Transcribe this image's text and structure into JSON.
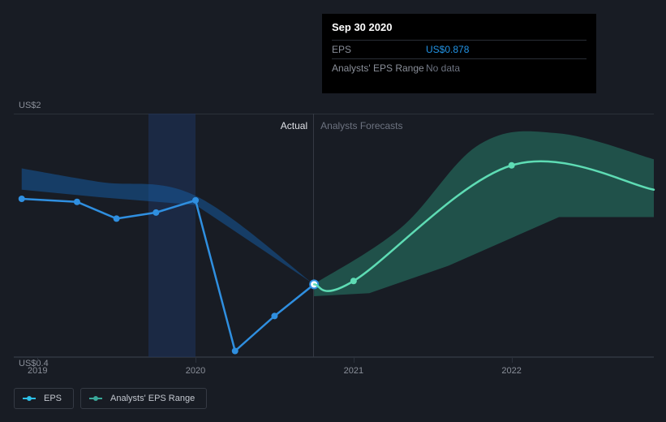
{
  "tooltip": {
    "date": "Sep 30 2020",
    "rows": [
      {
        "key": "EPS",
        "value": "US$0.878",
        "color": "#2294e6"
      },
      {
        "key": "Analysts' EPS Range",
        "value": "No data",
        "color": "#6d7380"
      }
    ]
  },
  "chart": {
    "type": "line",
    "background_color": "#181c24",
    "grid_color": "#2a303a",
    "text_color": "#8a8f99",
    "y_axis": {
      "top_label": "US$2",
      "top_value": 2.0,
      "bottom_label": "US$0.4",
      "bottom_value": 0.4
    },
    "x_axis": {
      "domain_min": 2018.85,
      "domain_max": 2022.9,
      "ticks": [
        {
          "value": 2019,
          "label": "2019"
        },
        {
          "value": 2020,
          "label": "2020"
        },
        {
          "value": 2021,
          "label": "2021"
        },
        {
          "value": 2022,
          "label": "2022"
        }
      ]
    },
    "actual_forecast_split": 2020.75,
    "highlight_band": {
      "from": 2019.7,
      "to": 2020.0
    },
    "region_labels": {
      "actual": {
        "text": "Actual",
        "color": "#e1e3e8"
      },
      "forecast": {
        "text": "Analysts Forecasts",
        "color": "#6d7380"
      }
    },
    "series": {
      "eps_actual": {
        "type": "line",
        "color": "#2f8fe0",
        "line_width": 2.5,
        "marker_radius": 4,
        "points": [
          {
            "x": 2018.9,
            "y": 1.44
          },
          {
            "x": 2019.25,
            "y": 1.42
          },
          {
            "x": 2019.5,
            "y": 1.31
          },
          {
            "x": 2019.75,
            "y": 1.35
          },
          {
            "x": 2020.0,
            "y": 1.43
          },
          {
            "x": 2020.25,
            "y": 0.44
          },
          {
            "x": 2020.5,
            "y": 0.67
          },
          {
            "x": 2020.75,
            "y": 0.878
          }
        ],
        "last_marker_style": {
          "fill": "#ffffff",
          "stroke": "#2f8fe0",
          "stroke_width": 2,
          "radius": 5
        }
      },
      "eps_forecast": {
        "type": "line",
        "color": "#5edcb4",
        "line_width": 2.5,
        "marker_radius": 4,
        "points": [
          {
            "x": 2020.75,
            "y": 0.878
          },
          {
            "x": 2021.0,
            "y": 0.9
          },
          {
            "x": 2022.0,
            "y": 1.66
          },
          {
            "x": 2022.9,
            "y": 1.5
          }
        ],
        "curve": "smooth",
        "markers_at": [
          2021.0,
          2022.0
        ]
      },
      "range_actual": {
        "type": "area",
        "fill": "#155a9c",
        "opacity": 0.55,
        "upper": [
          {
            "x": 2018.9,
            "y": 1.64
          },
          {
            "x": 2019.4,
            "y": 1.55
          },
          {
            "x": 2020.0,
            "y": 1.46
          },
          {
            "x": 2020.75,
            "y": 0.878
          }
        ],
        "lower": [
          {
            "x": 2020.75,
            "y": 0.878
          },
          {
            "x": 2020.0,
            "y": 1.4
          },
          {
            "x": 2019.4,
            "y": 1.45
          },
          {
            "x": 2018.9,
            "y": 1.5
          }
        ],
        "curve": "smooth"
      },
      "range_forecast": {
        "type": "area",
        "fill": "#2b927b",
        "opacity": 0.45,
        "upper": [
          {
            "x": 2020.75,
            "y": 0.88
          },
          {
            "x": 2021.3,
            "y": 1.25
          },
          {
            "x": 2021.8,
            "y": 1.8
          },
          {
            "x": 2022.3,
            "y": 1.87
          },
          {
            "x": 2022.9,
            "y": 1.7
          }
        ],
        "lower": [
          {
            "x": 2022.9,
            "y": 1.32
          },
          {
            "x": 2022.3,
            "y": 1.32
          },
          {
            "x": 2021.6,
            "y": 1.0
          },
          {
            "x": 2021.1,
            "y": 0.82
          },
          {
            "x": 2020.75,
            "y": 0.8
          }
        ],
        "curve": "smooth"
      }
    }
  },
  "legend": {
    "items": [
      {
        "label": "EPS",
        "color": "#2dc0e8",
        "marker_color": "#2dc0e8"
      },
      {
        "label": "Analysts' EPS Range",
        "color": "#3aa89a",
        "marker_color": "#3aa89a"
      }
    ]
  }
}
